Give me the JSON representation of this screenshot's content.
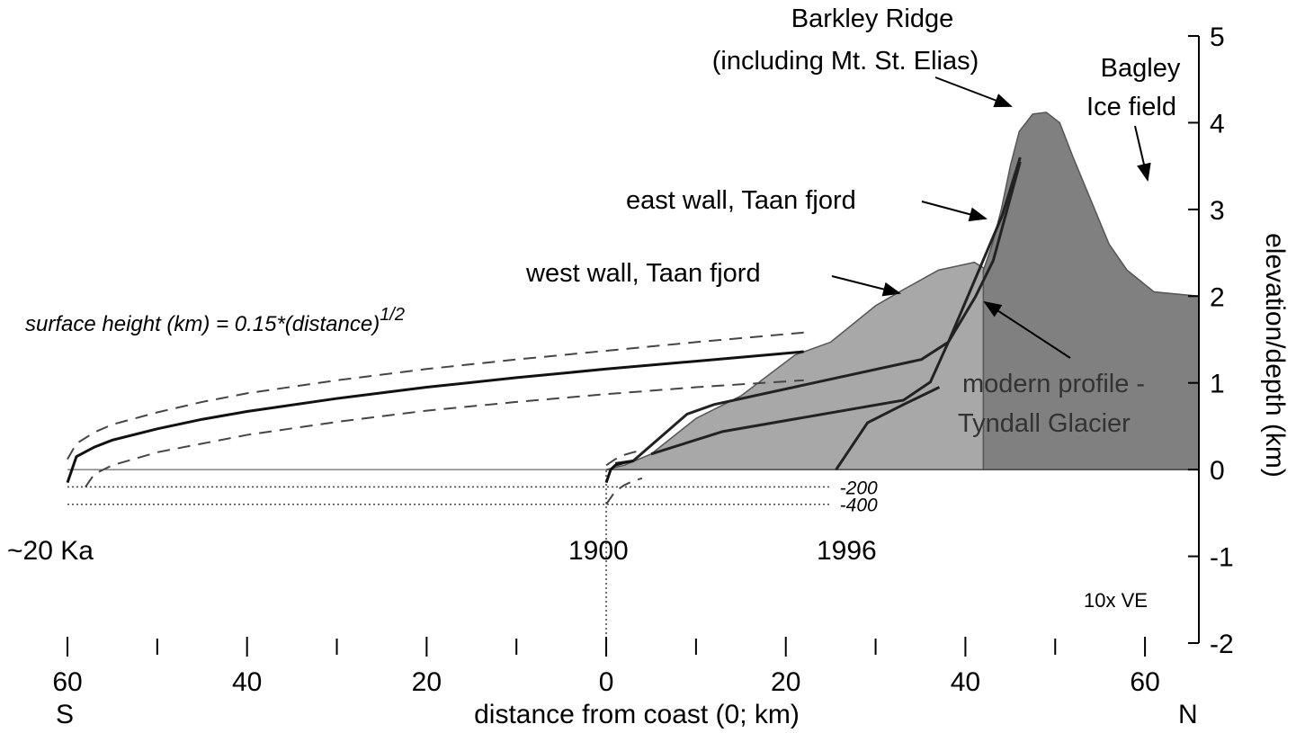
{
  "chart_data": {
    "type": "profile",
    "xlabel": "distance from coast (0; km)",
    "ylabel": "elevation/depth (km)",
    "xlim": [
      -60,
      66
    ],
    "ylim": [
      -2,
      5
    ],
    "xticks": [
      {
        "value": -60,
        "label": "60"
      },
      {
        "value": -40,
        "label": "40"
      },
      {
        "value": -20,
        "label": "20"
      },
      0,
      20,
      40,
      60
    ],
    "xminor_ticks": [
      -50,
      -30,
      -10,
      10,
      30,
      50
    ],
    "yticks": [
      5,
      4,
      3,
      2,
      1,
      0,
      -1,
      -2
    ],
    "areas": [
      {
        "name": "west wall, Taan fjord",
        "color": "#a8a8a8",
        "x": [
          0,
          2,
          5,
          10,
          15,
          21,
          25,
          30,
          33,
          37,
          41,
          44,
          50,
          58,
          66
        ],
        "y": [
          0,
          0.05,
          0.18,
          0.59,
          0.85,
          1.32,
          1.47,
          1.89,
          2.07,
          2.3,
          2.39,
          2.2,
          2.1,
          2.0,
          2.0
        ]
      },
      {
        "name": "east wall, Taan fjord",
        "color": "#808080",
        "x": [
          42,
          43,
          44,
          45,
          46,
          47.5,
          49,
          50.5,
          52,
          54,
          56,
          58,
          61,
          66
        ],
        "y": [
          2.3,
          2.6,
          3.0,
          3.5,
          3.9,
          4.1,
          4.12,
          4.0,
          3.6,
          3.1,
          2.6,
          2.3,
          2.05,
          2.0
        ]
      }
    ],
    "lines": [
      {
        "color": "#222222",
        "style": "solid",
        "x": [
          1.0,
          3.0,
          9.0,
          12.0,
          35.1,
          38.1,
          41.1,
          43.1,
          46.1
        ],
        "y": [
          0.07,
          0.1,
          0.64,
          0.75,
          1.27,
          1.47,
          1.99,
          2.41,
          3.55
        ]
      },
      {
        "color": "#222222",
        "style": "solid",
        "x": [
          5.0,
          13.0,
          33.1,
          36.1,
          38.1,
          41.1,
          44.1,
          46.1
        ],
        "y": [
          0.18,
          0.44,
          0.8,
          1.01,
          1.47,
          2.2,
          2.93,
          3.6
        ]
      },
      {
        "color": "#222222",
        "style": "solid",
        "x": [
          25.6,
          29.1,
          33.1,
          37.1
        ],
        "y": [
          0,
          0.54,
          0.75,
          0.95
        ]
      },
      {
        "color": "#111111",
        "style": "solid",
        "x": [
          -60,
          -59,
          -57,
          -55,
          -50,
          -45,
          -40,
          -30,
          -20,
          -10,
          0,
          10,
          22
        ],
        "y": [
          -0.15,
          0.15,
          0.26,
          0.34,
          0.47,
          0.58,
          0.67,
          0.82,
          0.95,
          1.06,
          1.16,
          1.25,
          1.36
        ]
      },
      {
        "color": "#444444",
        "style": "dashed",
        "x": [
          -60,
          -59,
          -57,
          -55,
          -50,
          -45,
          -40,
          -30,
          -20,
          -10,
          0,
          10,
          22
        ],
        "y": [
          0.12,
          0.3,
          0.43,
          0.52,
          0.66,
          0.78,
          0.88,
          1.03,
          1.16,
          1.27,
          1.37,
          1.47,
          1.58
        ]
      },
      {
        "color": "#444444",
        "style": "dashed",
        "x": [
          -58,
          -57,
          -55,
          -50,
          -45,
          -40,
          -30,
          -20,
          -10,
          0,
          10,
          22
        ],
        "y": [
          -0.2,
          -0.05,
          0.05,
          0.2,
          0.3,
          0.4,
          0.55,
          0.68,
          0.78,
          0.87,
          0.95,
          1.03
        ]
      },
      {
        "color": "#111111",
        "style": "solid",
        "x": [
          0,
          0.5,
          1,
          2,
          3
        ],
        "y": [
          -0.15,
          0,
          0.05,
          0.08,
          0.1
        ]
      },
      {
        "color": "#444444",
        "style": "dashed",
        "x": [
          0,
          1,
          2,
          3,
          4
        ],
        "y": [
          0.05,
          0.12,
          0.17,
          0.2,
          0.22
        ]
      },
      {
        "color": "#444444",
        "style": "dashed",
        "x": [
          0,
          1,
          2,
          3,
          4
        ],
        "y": [
          -0.4,
          -0.25,
          -0.18,
          -0.13,
          -0.1
        ]
      }
    ],
    "hlines": [
      {
        "y": 0,
        "x": [
          -60,
          66
        ],
        "style": "solid"
      },
      {
        "y": -0.2,
        "x": [
          -60,
          25
        ],
        "style": "dotted",
        "label": "-200"
      },
      {
        "y": -0.4,
        "x": [
          -60,
          25
        ],
        "style": "dotted",
        "label": "-400"
      }
    ],
    "vlines": [
      {
        "x": 0,
        "y": [
          -2,
          0
        ],
        "style": "dotted"
      }
    ],
    "annotations": {
      "barkley": "Barkley Ridge",
      "barkley2": "(including Mt. St. Elias)",
      "bagley": "Bagley",
      "bagley2": "Ice field",
      "east": "east wall, Taan fjord",
      "west": "west wall, Taan fjord",
      "formula": "surface height (km) = 0.15*(distance)",
      "formula_exp": "1/2",
      "modern": "modern profile -",
      "modern2": "Tyndall Glacier",
      "ka": "~20 Ka",
      "y1900": "1900",
      "y1996": "1996",
      "ve": "10x VE",
      "south": "S",
      "north": "N"
    }
  }
}
